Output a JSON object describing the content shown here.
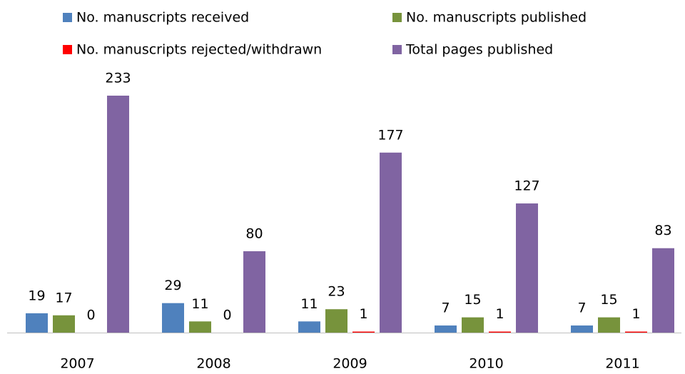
{
  "chart_data": {
    "type": "bar",
    "categories": [
      "2007",
      "2008",
      "2009",
      "2010",
      "2011"
    ],
    "series": [
      {
        "name": "No. manuscripts received",
        "color": "#4f81bd",
        "values": [
          19,
          29,
          11,
          7,
          7
        ]
      },
      {
        "name": "No. manuscripts published",
        "color": "#77933c",
        "values": [
          17,
          11,
          23,
          15,
          15
        ]
      },
      {
        "name": "No. manuscripts rejected/withdrawn",
        "color": "#ff0000",
        "values": [
          0,
          0,
          1,
          1,
          1
        ]
      },
      {
        "name": "Total pages published",
        "color": "#8064a2",
        "values": [
          233,
          80,
          177,
          127,
          83
        ]
      }
    ]
  }
}
